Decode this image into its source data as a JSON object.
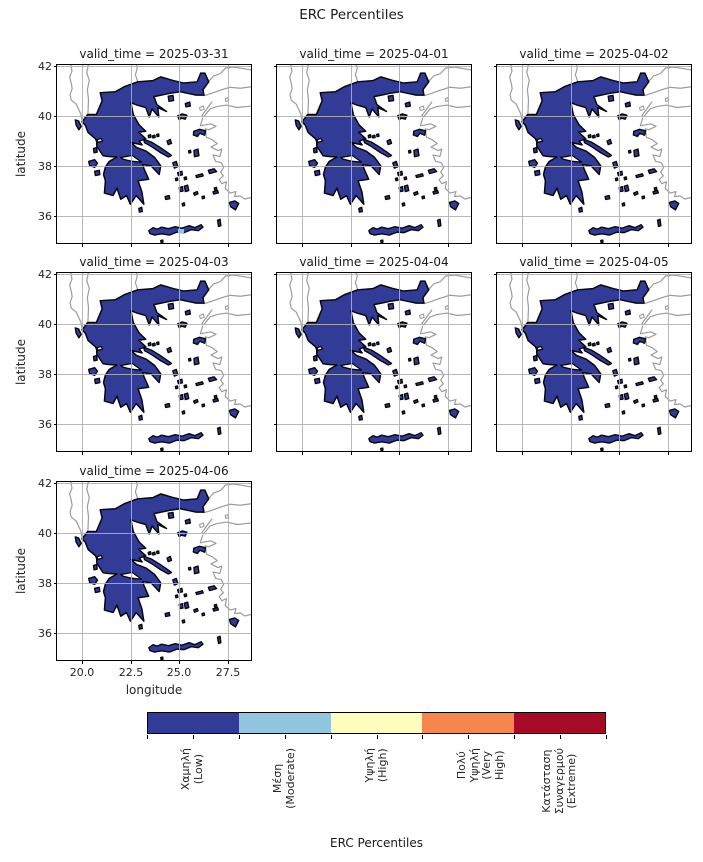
{
  "figure": {
    "title": "ERC Percentiles"
  },
  "panels": [
    {
      "title": "valid_time = 2025-03-31"
    },
    {
      "title": "valid_time = 2025-04-01"
    },
    {
      "title": "valid_time = 2025-04-02"
    },
    {
      "title": "valid_time = 2025-04-03"
    },
    {
      "title": "valid_time = 2025-04-04"
    },
    {
      "title": "valid_time = 2025-04-05"
    },
    {
      "title": "valid_time = 2025-04-06"
    }
  ],
  "axes": {
    "xlabel": "longitude",
    "ylabel": "latitude",
    "lat_ticks": [
      "42",
      "40",
      "38",
      "36"
    ],
    "lon_ticks": [
      "20.0",
      "22.5",
      "25.0",
      "27.5"
    ]
  },
  "map": {
    "fill_color": "#323b96",
    "moderate_cell_color": "#92c5de",
    "coastline_color": "#07070f",
    "neighbor_line_color": "#9c9c9c"
  },
  "colorbar": {
    "label": "ERC Percentiles",
    "categories": [
      {
        "label": "Χαμηλή\n(Low)",
        "color": "#323b96"
      },
      {
        "label": "Μέση\n(Moderate)",
        "color": "#92c5de"
      },
      {
        "label": "Υψηλή\n(High)",
        "color": "#fefebe"
      },
      {
        "label": "Πολύ Υψηλή\n(Very High)",
        "color": "#f5874e"
      },
      {
        "label": "Κατάσταση\nΣυναγερμού\n(Extreme)",
        "color": "#a50b26"
      }
    ]
  },
  "chart_data": {
    "type": "choropleth_facets",
    "title": "ERC Percentiles",
    "facet_variable": "valid_time",
    "facets": [
      "2025-03-31",
      "2025-04-01",
      "2025-04-02",
      "2025-04-03",
      "2025-04-04",
      "2025-04-05",
      "2025-04-06"
    ],
    "layout": "3 columns x 3 rows, 7 panels used",
    "region": "Greece",
    "xlabel": "longitude",
    "ylabel": "latitude",
    "xlim": [
      18.7,
      28.8
    ],
    "ylim": [
      34.85,
      42.05
    ],
    "xticks": [
      20.0,
      22.5,
      25.0,
      27.5
    ],
    "yticks": [
      36,
      38,
      40,
      42
    ],
    "grid_on": true,
    "categories": [
      "Χαμηλή (Low)",
      "Μέση (Moderate)",
      "Υψηλή (High)",
      "Πολύ Υψηλή (Very High)",
      "Κατάσταση Συναγερμού (Extreme)"
    ],
    "category_colors": [
      "#323b96",
      "#92c5de",
      "#fefebe",
      "#f5874e",
      "#a50b26"
    ],
    "values_depicted": "Greece is entirely in the lowest class Χαμηλή (Low) on all seven dates; a single small Μέση (Moderate) grid cell appears on Crete on 2025-03-31.",
    "colorbar_label": "ERC Percentiles"
  }
}
